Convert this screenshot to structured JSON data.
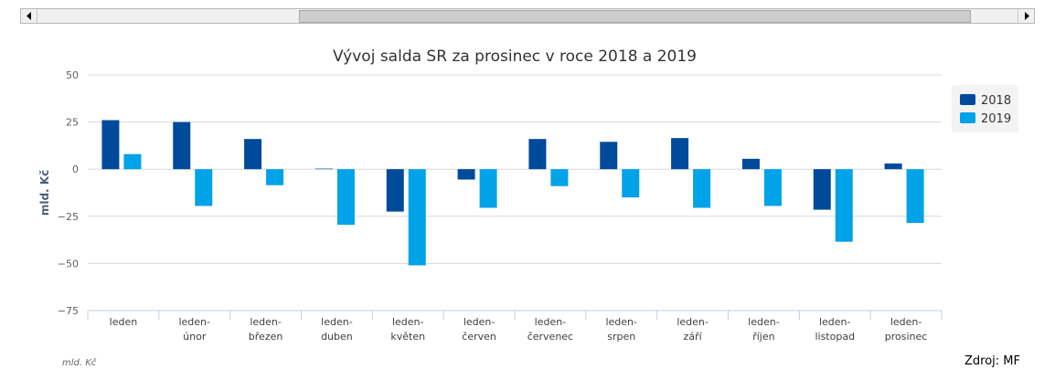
{
  "scrollbar": {
    "left_arrow_icon": "triangle-left-icon",
    "right_arrow_icon": "triangle-right-icon"
  },
  "footer": {
    "note": "mld. Kč",
    "source": "Zdroj: MF"
  },
  "colors": {
    "series_2018": "#004a9b",
    "series_2019": "#00a2e8",
    "grid": "#d8d8d8",
    "axis_text": "#606060"
  },
  "chart_data": {
    "type": "bar",
    "title": "Vývoj salda SR za prosinec v roce 2018 a 2019",
    "xlabel": "",
    "ylabel": "mld. Kč",
    "ylim": [
      -75,
      50
    ],
    "yticks": [
      50,
      25,
      0,
      -25,
      -50,
      -75
    ],
    "ytick_labels": [
      "50",
      "25",
      "0",
      "−25",
      "−50",
      "−75"
    ],
    "grid": true,
    "legend_position": "right",
    "categories": [
      [
        "leden"
      ],
      [
        "leden-",
        "únor"
      ],
      [
        "leden-",
        "březen"
      ],
      [
        "leden-",
        "duben"
      ],
      [
        "leden-",
        "květen"
      ],
      [
        "leden-",
        "červen"
      ],
      [
        "leden-",
        "červenec"
      ],
      [
        "leden-",
        "srpen"
      ],
      [
        "leden-",
        "září"
      ],
      [
        "leden-",
        "říjen"
      ],
      [
        "leden-",
        "listopad"
      ],
      [
        "leden-",
        "prosinec"
      ]
    ],
    "series": [
      {
        "name": "2018",
        "color": "#004a9b",
        "values": [
          26,
          25,
          16,
          0.3,
          -22.5,
          -5.5,
          16,
          14.5,
          16.5,
          5.5,
          -21.5,
          3
        ]
      },
      {
        "name": "2019",
        "color": "#00a2e8",
        "values": [
          8,
          -19.5,
          -8.5,
          -29.5,
          -51,
          -20.5,
          -9,
          -15,
          -20.5,
          -19.5,
          -38.5,
          -28.5
        ]
      }
    ]
  }
}
